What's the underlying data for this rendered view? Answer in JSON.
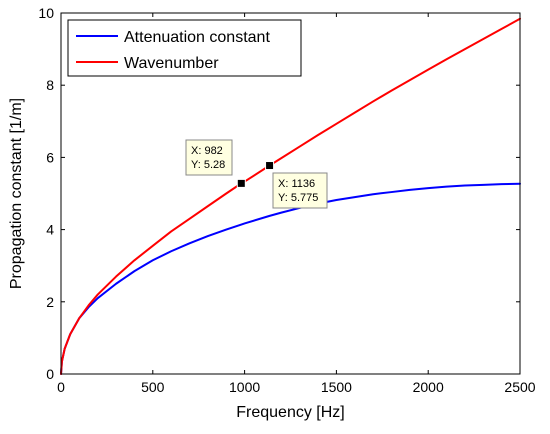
{
  "chart_data": {
    "type": "line",
    "xlabel": "Frequency [Hz]",
    "ylabel": "Propagation constant [1/m]",
    "xlim": [
      0,
      2500
    ],
    "ylim": [
      0,
      10
    ],
    "xticks": [
      0,
      500,
      1000,
      1500,
      2000,
      2500
    ],
    "yticks": [
      0,
      2,
      4,
      6,
      8,
      10
    ],
    "grid": false,
    "legend_position": "top-left",
    "series": [
      {
        "name": "Attenuation constant",
        "color": "#0000ff",
        "x": [
          0,
          5,
          20,
          50,
          100,
          150,
          200,
          300,
          400,
          500,
          600,
          700,
          800,
          900,
          982,
          1000,
          1136,
          1200,
          1300,
          1400,
          1500,
          1600,
          1700,
          1800,
          1900,
          2000,
          2100,
          2200,
          2300,
          2400,
          2500
        ],
        "y": [
          0,
          0.35,
          0.7,
          1.1,
          1.55,
          1.85,
          2.1,
          2.5,
          2.85,
          3.15,
          3.4,
          3.62,
          3.82,
          4.0,
          4.14,
          4.17,
          4.38,
          4.47,
          4.6,
          4.72,
          4.82,
          4.9,
          4.98,
          5.04,
          5.1,
          5.15,
          5.19,
          5.22,
          5.24,
          5.26,
          5.27
        ]
      },
      {
        "name": "Wavenumber",
        "color": "#ff0000",
        "x": [
          0,
          5,
          20,
          50,
          100,
          150,
          200,
          300,
          400,
          500,
          600,
          700,
          800,
          900,
          982,
          1000,
          1136,
          1200,
          1300,
          1400,
          1500,
          1600,
          1700,
          1800,
          1900,
          2000,
          2100,
          2200,
          2300,
          2400,
          2500
        ],
        "y": [
          0,
          0.35,
          0.7,
          1.1,
          1.55,
          1.9,
          2.2,
          2.7,
          3.15,
          3.55,
          3.95,
          4.3,
          4.65,
          5.0,
          5.28,
          5.33,
          5.775,
          5.98,
          6.3,
          6.62,
          6.93,
          7.24,
          7.55,
          7.85,
          8.14,
          8.43,
          8.72,
          9.0,
          9.28,
          9.56,
          9.84
        ]
      }
    ],
    "datatips": [
      {
        "x": 982,
        "y": 5.28,
        "label_x": "X: 982",
        "label_y": "Y: 5.28"
      },
      {
        "x": 1136,
        "y": 5.775,
        "label_x": "X: 1136",
        "label_y": "Y: 5.775"
      }
    ]
  }
}
